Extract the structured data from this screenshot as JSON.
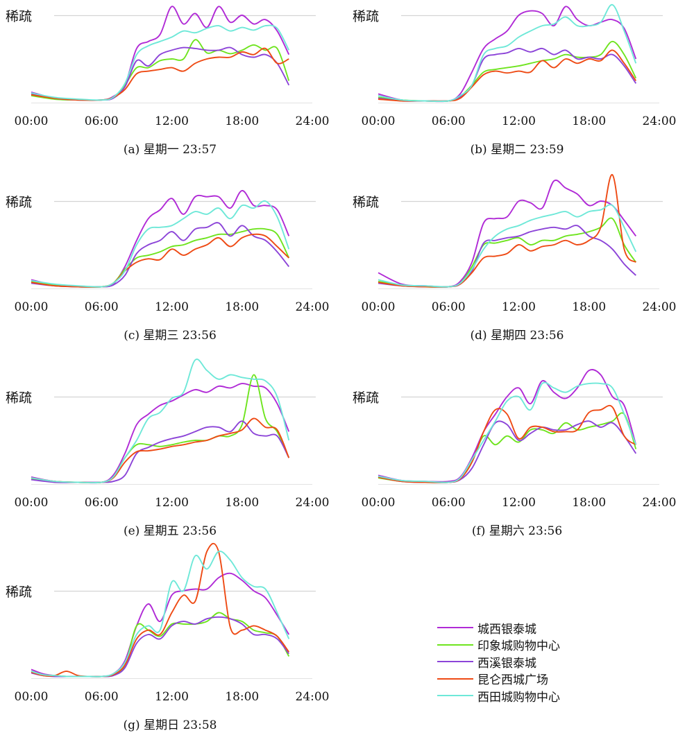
{
  "colors": {
    "城西银泰城": "#b02ad6",
    "印象城购物中心": "#6ee41e",
    "西溪银泰城": "#8c44d8",
    "昆仑西城广场": "#ee4a14",
    "西田城购物中心": "#6ee8d8"
  },
  "legend": [
    "城西银泰城",
    "印象城购物中心",
    "西溪银泰城",
    "昆仑西城广场",
    "西田城购物中心"
  ],
  "chart_data": [
    {
      "type": "line",
      "caption": "(a) 星期一 23:57",
      "y_label": "稀疏",
      "x_ticks": [
        "00:00",
        "06:00",
        "12:00",
        "18:00",
        "24:00"
      ],
      "xlim": [
        0,
        24
      ],
      "x": [
        0,
        2,
        4,
        6,
        7,
        8,
        9,
        10,
        11,
        12,
        13,
        14,
        15,
        16,
        17,
        18,
        19,
        20,
        21,
        22
      ],
      "series": [
        {
          "name": "城西银泰城",
          "values": [
            0.12,
            0.05,
            0.03,
            0.03,
            0.07,
            0.2,
            0.62,
            0.7,
            0.78,
            1.1,
            0.9,
            1.02,
            0.86,
            1.1,
            0.92,
            1.0,
            0.9,
            0.95,
            0.82,
            0.55
          ]
        },
        {
          "name": "印象城购物中心",
          "values": [
            0.08,
            0.04,
            0.03,
            0.03,
            0.06,
            0.2,
            0.4,
            0.4,
            0.48,
            0.5,
            0.5,
            0.72,
            0.57,
            0.6,
            0.56,
            0.6,
            0.66,
            0.6,
            0.62,
            0.25
          ]
        },
        {
          "name": "西溪银泰城",
          "values": [
            0.1,
            0.05,
            0.03,
            0.03,
            0.05,
            0.18,
            0.48,
            0.42,
            0.55,
            0.6,
            0.63,
            0.62,
            0.6,
            0.6,
            0.63,
            0.55,
            0.52,
            0.55,
            0.45,
            0.2
          ]
        },
        {
          "name": "昆仑西城广场",
          "values": [
            0.09,
            0.05,
            0.03,
            0.03,
            0.06,
            0.15,
            0.33,
            0.36,
            0.38,
            0.4,
            0.36,
            0.45,
            0.5,
            0.52,
            0.52,
            0.58,
            0.55,
            0.62,
            0.45,
            0.5
          ]
        },
        {
          "name": "西田城购物中心",
          "values": [
            0.11,
            0.06,
            0.04,
            0.03,
            0.06,
            0.22,
            0.55,
            0.65,
            0.7,
            0.75,
            0.82,
            0.8,
            0.85,
            0.88,
            0.82,
            0.86,
            0.83,
            0.88,
            0.85,
            0.6
          ]
        }
      ]
    },
    {
      "type": "line",
      "caption": "(b) 星期二 23:59",
      "y_label": "稀疏",
      "x_ticks": [
        "00:00",
        "06:00",
        "12:00",
        "18:00",
        "24:00"
      ],
      "xlim": [
        0,
        24
      ],
      "x": [
        0,
        2,
        4,
        6,
        7,
        8,
        9,
        10,
        11,
        12,
        13,
        14,
        15,
        16,
        17,
        18,
        19,
        20,
        21,
        22
      ],
      "series": [
        {
          "name": "城西银泰城",
          "values": [
            0.1,
            0.03,
            0.02,
            0.02,
            0.1,
            0.35,
            0.62,
            0.73,
            0.82,
            1.0,
            1.05,
            1.02,
            0.88,
            1.1,
            0.95,
            0.88,
            0.92,
            0.95,
            0.85,
            0.5
          ]
        },
        {
          "name": "印象城购物中心",
          "values": [
            0.06,
            0.03,
            0.02,
            0.02,
            0.07,
            0.2,
            0.35,
            0.38,
            0.4,
            0.42,
            0.45,
            0.48,
            0.5,
            0.55,
            0.52,
            0.52,
            0.55,
            0.7,
            0.55,
            0.28
          ]
        },
        {
          "name": "西溪银泰城",
          "values": [
            0.05,
            0.02,
            0.02,
            0.02,
            0.06,
            0.2,
            0.5,
            0.55,
            0.57,
            0.62,
            0.58,
            0.62,
            0.55,
            0.6,
            0.5,
            0.52,
            0.5,
            0.55,
            0.42,
            0.22
          ]
        },
        {
          "name": "昆仑西城广场",
          "values": [
            0.04,
            0.02,
            0.02,
            0.02,
            0.05,
            0.18,
            0.32,
            0.36,
            0.34,
            0.36,
            0.35,
            0.48,
            0.4,
            0.5,
            0.45,
            0.5,
            0.48,
            0.6,
            0.45,
            0.25
          ]
        },
        {
          "name": "西田城购物中心",
          "values": [
            0.08,
            0.03,
            0.02,
            0.02,
            0.08,
            0.2,
            0.55,
            0.62,
            0.65,
            0.75,
            0.82,
            0.88,
            0.9,
            0.98,
            0.88,
            0.88,
            0.92,
            1.12,
            0.82,
            0.45
          ]
        }
      ]
    },
    {
      "type": "line",
      "caption": "(c) 星期三 23:56",
      "y_label": "稀疏",
      "x_ticks": [
        "00:00",
        "06:00",
        "12:00",
        "18:00",
        "24:00"
      ],
      "xlim": [
        0,
        24
      ],
      "x": [
        0,
        2,
        4,
        6,
        7,
        8,
        9,
        10,
        11,
        12,
        13,
        14,
        15,
        16,
        17,
        18,
        19,
        20,
        21,
        22
      ],
      "series": [
        {
          "name": "城西银泰城",
          "values": [
            0.1,
            0.04,
            0.02,
            0.02,
            0.05,
            0.25,
            0.55,
            0.8,
            0.9,
            1.03,
            0.85,
            1.05,
            1.05,
            1.05,
            0.92,
            1.12,
            0.95,
            0.95,
            0.9,
            0.6
          ]
        },
        {
          "name": "印象城购物中心",
          "values": [
            0.08,
            0.04,
            0.02,
            0.02,
            0.06,
            0.22,
            0.35,
            0.38,
            0.42,
            0.48,
            0.5,
            0.55,
            0.58,
            0.62,
            0.62,
            0.65,
            0.68,
            0.68,
            0.62,
            0.35
          ]
        },
        {
          "name": "西溪银泰城",
          "values": [
            0.06,
            0.03,
            0.02,
            0.02,
            0.04,
            0.15,
            0.4,
            0.5,
            0.55,
            0.65,
            0.55,
            0.68,
            0.7,
            0.75,
            0.6,
            0.72,
            0.6,
            0.55,
            0.42,
            0.25
          ]
        },
        {
          "name": "昆仑西城广场",
          "values": [
            0.07,
            0.03,
            0.02,
            0.02,
            0.06,
            0.2,
            0.3,
            0.34,
            0.33,
            0.45,
            0.38,
            0.45,
            0.5,
            0.58,
            0.48,
            0.58,
            0.62,
            0.6,
            0.48,
            0.35
          ]
        },
        {
          "name": "西田城购物中心",
          "values": [
            0.09,
            0.05,
            0.03,
            0.02,
            0.06,
            0.2,
            0.5,
            0.68,
            0.7,
            0.72,
            0.8,
            0.88,
            0.85,
            0.92,
            0.8,
            0.95,
            0.92,
            1.0,
            0.82,
            0.45
          ]
        }
      ]
    },
    {
      "type": "line",
      "caption": "(d) 星期四 23:56",
      "y_label": "稀疏",
      "x_ticks": [
        "00:00",
        "06:00",
        "12:00",
        "18:00",
        "24:00"
      ],
      "xlim": [
        0,
        24
      ],
      "x": [
        0,
        2,
        4,
        6,
        7,
        8,
        9,
        10,
        11,
        12,
        13,
        14,
        15,
        16,
        17,
        18,
        19,
        20,
        21,
        22
      ],
      "series": [
        {
          "name": "城西银泰城",
          "values": [
            0.18,
            0.05,
            0.03,
            0.02,
            0.08,
            0.3,
            0.75,
            0.8,
            0.82,
            1.0,
            0.98,
            0.92,
            1.23,
            1.15,
            1.08,
            0.95,
            1.0,
            0.95,
            0.78,
            0.6
          ]
        },
        {
          "name": "印象城购物中心",
          "values": [
            0.08,
            0.04,
            0.02,
            0.02,
            0.06,
            0.25,
            0.5,
            0.52,
            0.55,
            0.58,
            0.5,
            0.55,
            0.55,
            0.6,
            0.62,
            0.65,
            0.7,
            0.8,
            0.5,
            0.3
          ]
        },
        {
          "name": "西溪银泰城",
          "values": [
            0.06,
            0.03,
            0.02,
            0.02,
            0.05,
            0.2,
            0.52,
            0.55,
            0.58,
            0.6,
            0.65,
            0.68,
            0.7,
            0.68,
            0.72,
            0.6,
            0.55,
            0.45,
            0.28,
            0.15
          ]
        },
        {
          "name": "昆仑西城广场",
          "values": [
            0.07,
            0.03,
            0.02,
            0.02,
            0.05,
            0.18,
            0.35,
            0.37,
            0.4,
            0.5,
            0.43,
            0.48,
            0.5,
            0.55,
            0.5,
            0.55,
            0.7,
            1.3,
            0.45,
            0.3
          ]
        },
        {
          "name": "西田城购物中心",
          "values": [
            0.1,
            0.04,
            0.03,
            0.02,
            0.06,
            0.22,
            0.45,
            0.6,
            0.68,
            0.72,
            0.78,
            0.82,
            0.85,
            0.88,
            0.82,
            0.88,
            0.9,
            0.95,
            0.7,
            0.42
          ]
        }
      ]
    },
    {
      "type": "line",
      "caption": "(e) 星期五 23:56",
      "y_label": "稀疏",
      "x_ticks": [
        "00:00",
        "06:00",
        "12:00",
        "18:00",
        "24:00"
      ],
      "xlim": [
        0,
        24
      ],
      "x": [
        0,
        2,
        4,
        6,
        7,
        8,
        9,
        10,
        11,
        12,
        13,
        14,
        15,
        16,
        17,
        18,
        19,
        20,
        21,
        22
      ],
      "series": [
        {
          "name": "城西银泰城",
          "values": [
            0.08,
            0.03,
            0.02,
            0.02,
            0.1,
            0.35,
            0.68,
            0.8,
            0.9,
            0.95,
            1.02,
            1.08,
            1.05,
            1.12,
            1.1,
            1.15,
            1.12,
            1.1,
            0.92,
            0.6
          ]
        },
        {
          "name": "印象城购物中心",
          "values": [
            0.06,
            0.03,
            0.02,
            0.02,
            0.08,
            0.3,
            0.45,
            0.45,
            0.43,
            0.45,
            0.48,
            0.5,
            0.5,
            0.55,
            0.55,
            0.68,
            1.25,
            0.75,
            0.6,
            0.3
          ]
        },
        {
          "name": "西溪银泰城",
          "values": [
            0.05,
            0.02,
            0.02,
            0.02,
            0.03,
            0.1,
            0.35,
            0.42,
            0.48,
            0.52,
            0.55,
            0.6,
            0.65,
            0.65,
            0.6,
            0.72,
            0.58,
            0.55,
            0.55,
            0.3
          ]
        },
        {
          "name": "昆仑西城广场",
          "values": [
            0.07,
            0.03,
            0.02,
            0.02,
            0.07,
            0.25,
            0.37,
            0.38,
            0.4,
            0.43,
            0.45,
            0.48,
            0.5,
            0.55,
            0.58,
            0.62,
            0.75,
            0.65,
            0.62,
            0.3
          ]
        },
        {
          "name": "西田城购物中心",
          "values": [
            0.07,
            0.03,
            0.02,
            0.02,
            0.08,
            0.3,
            0.5,
            0.75,
            0.82,
            0.98,
            1.05,
            1.42,
            1.3,
            1.2,
            1.25,
            1.22,
            1.2,
            1.18,
            1.0,
            0.5
          ]
        }
      ]
    },
    {
      "type": "line",
      "caption": "(f) 星期六 23:56",
      "y_label": "稀疏",
      "x_ticks": [
        "00:00",
        "06:00",
        "12:00",
        "18:00",
        "24:00"
      ],
      "xlim": [
        0,
        24
      ],
      "x": [
        0,
        2,
        4,
        6,
        7,
        8,
        9,
        10,
        11,
        12,
        13,
        14,
        15,
        16,
        17,
        18,
        19,
        20,
        21,
        22
      ],
      "series": [
        {
          "name": "城西银泰城",
          "values": [
            0.1,
            0.04,
            0.03,
            0.03,
            0.08,
            0.3,
            0.6,
            0.8,
            1.0,
            1.1,
            0.92,
            1.18,
            1.05,
            0.98,
            1.1,
            1.3,
            1.25,
            1.0,
            0.9,
            0.45
          ]
        },
        {
          "name": "印象城购物中心",
          "values": [
            0.07,
            0.03,
            0.02,
            0.02,
            0.06,
            0.25,
            0.55,
            0.45,
            0.55,
            0.48,
            0.62,
            0.62,
            0.58,
            0.7,
            0.62,
            0.65,
            0.68,
            0.72,
            0.8,
            0.4
          ]
        },
        {
          "name": "西溪银泰城",
          "values": [
            0.08,
            0.03,
            0.02,
            0.02,
            0.05,
            0.18,
            0.45,
            0.7,
            0.68,
            0.5,
            0.58,
            0.65,
            0.62,
            0.62,
            0.68,
            0.72,
            0.65,
            0.7,
            0.55,
            0.35
          ]
        },
        {
          "name": "昆仑西城广场",
          "values": [
            0.08,
            0.03,
            0.02,
            0.02,
            0.06,
            0.25,
            0.6,
            0.85,
            0.8,
            0.52,
            0.65,
            0.65,
            0.6,
            0.6,
            0.62,
            0.82,
            0.85,
            0.88,
            0.55,
            0.45
          ]
        },
        {
          "name": "西田城购物中心",
          "values": [
            0.09,
            0.04,
            0.03,
            0.02,
            0.07,
            0.28,
            0.5,
            0.72,
            0.95,
            1.0,
            0.85,
            1.15,
            1.1,
            1.05,
            1.12,
            1.15,
            1.15,
            1.1,
            0.8,
            0.45
          ]
        }
      ]
    },
    {
      "type": "line",
      "caption": "(g) 星期日 23:58",
      "y_label": "稀疏",
      "x_ticks": [
        "00:00",
        "06:00",
        "12:00",
        "18:00",
        "24:00"
      ],
      "xlim": [
        0,
        24
      ],
      "x": [
        0,
        1,
        2,
        3,
        4,
        5,
        6,
        7,
        8,
        9,
        10,
        11,
        12,
        13,
        14,
        15,
        16,
        17,
        18,
        19,
        20,
        21,
        22
      ],
      "series": [
        {
          "name": "城西银泰城",
          "values": [
            0.1,
            0.05,
            0.03,
            0.02,
            0.02,
            0.02,
            0.02,
            0.05,
            0.2,
            0.6,
            0.85,
            0.65,
            0.95,
            1.0,
            1.02,
            1.02,
            1.15,
            1.2,
            1.12,
            1.0,
            0.92,
            0.72,
            0.5
          ]
        },
        {
          "name": "印象城购物中心",
          "values": [
            0.08,
            0.04,
            0.03,
            0.02,
            0.02,
            0.02,
            0.02,
            0.04,
            0.15,
            0.6,
            0.55,
            0.48,
            0.62,
            0.62,
            0.62,
            0.65,
            0.75,
            0.68,
            0.65,
            0.55,
            0.52,
            0.48,
            0.25
          ]
        },
        {
          "name": "西溪银泰城",
          "values": [
            0.06,
            0.03,
            0.02,
            0.02,
            0.02,
            0.02,
            0.02,
            0.03,
            0.12,
            0.4,
            0.5,
            0.45,
            0.6,
            0.65,
            0.62,
            0.68,
            0.7,
            0.68,
            0.62,
            0.5,
            0.5,
            0.45,
            0.28
          ]
        },
        {
          "name": "昆仑西城广场",
          "values": [
            0.07,
            0.03,
            0.03,
            0.08,
            0.03,
            0.02,
            0.02,
            0.04,
            0.15,
            0.45,
            0.55,
            0.5,
            0.75,
            0.95,
            0.88,
            1.45,
            1.45,
            0.58,
            0.55,
            0.6,
            0.55,
            0.48,
            0.3
          ]
        },
        {
          "name": "西田城购物中心",
          "values": [
            0.08,
            0.04,
            0.03,
            0.02,
            0.02,
            0.02,
            0.02,
            0.05,
            0.18,
            0.5,
            0.6,
            0.55,
            1.1,
            1.0,
            1.4,
            1.25,
            1.45,
            1.35,
            1.15,
            1.05,
            1.02,
            0.75,
            0.45
          ]
        }
      ]
    }
  ]
}
